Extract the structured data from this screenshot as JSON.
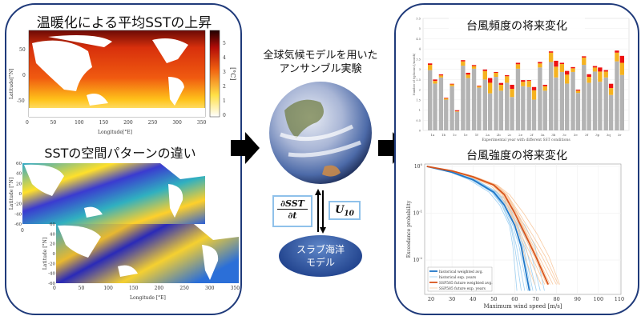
{
  "left_panel": {
    "title1": "温暖化による平均SSTの上昇",
    "title2": "SSTの空間パターンの違い",
    "map1": {
      "ylabel": "Latitude[°N]",
      "xlabel": "Longitude[°E]",
      "yticks": [
        "50",
        "0",
        "-50"
      ],
      "xticks": [
        "0",
        "50",
        "100",
        "150",
        "200",
        "250",
        "300",
        "350"
      ],
      "colorbar_ticks": [
        "5",
        "4",
        "3",
        "2",
        "1",
        "0"
      ],
      "colorbar_unit": "[°C]"
    },
    "map2": {
      "ylabel": "Latitude [°N]",
      "yticks": [
        "60",
        "40",
        "20",
        "0",
        "-20",
        "-40",
        "-60"
      ],
      "xticks": [
        "0"
      ]
    },
    "map3": {
      "ylabel": "Latitude [°N]",
      "xlabel": "Longitude [°E]",
      "yticks": [
        "60",
        "40",
        "20",
        "0",
        "-20",
        "-40",
        "-60"
      ],
      "xticks": [
        "0",
        "50",
        "100",
        "150",
        "200",
        "250",
        "300",
        "350"
      ]
    }
  },
  "center": {
    "title_line1": "全球気候モデルを用いた",
    "title_line2": "アンサンブル実験",
    "flux_box_numerator": "∂SST",
    "flux_box_denominator": "∂t",
    "wind_box": "U",
    "wind_box_sub": "10",
    "slab_line1": "スラブ海洋",
    "slab_line2": "モデル"
  },
  "right_panel": {
    "title1": "台風頻度の将来変化",
    "title2": "台風強度の将来変化"
  },
  "colors": {
    "border": "#1f3a7a",
    "gray": "#b3b3b3",
    "orange": "#f5b21f",
    "red": "#ee1111",
    "hist": "#1f77c8",
    "hist_light": "#9fd0f2",
    "future": "#d9541a",
    "future_light": "#f8c9a0"
  },
  "chart_data": [
    {
      "type": "bar",
      "stacked": true,
      "xlabel": "Experimental year with different SST conditions",
      "ylabel": "Number of typhoons [/month]",
      "ylim": [
        0,
        5.5
      ],
      "yticks": [
        "0",
        "0.5",
        "1",
        "1.5",
        "2",
        "2.5",
        "3",
        "3.5",
        "4",
        "4.5",
        "5",
        "5.5"
      ],
      "categories": [
        "1a",
        "1b",
        "1c",
        "1e",
        "1f",
        "2a",
        "2b",
        "2c",
        "2e",
        "2f",
        "3a",
        "3b",
        "3c",
        "3e",
        "3f",
        "3p",
        "3q",
        "3r"
      ],
      "bars_per_category": 2,
      "segment_colors": [
        "gray",
        "orange",
        "red"
      ],
      "cumulative_tops": [
        [
          [
            2.96,
            3.22,
            3.29
          ],
          [
            2.3,
            2.43,
            2.5
          ]
        ],
        [
          [
            2.6,
            2.7,
            2.75
          ],
          [
            1.51,
            1.57,
            1.6
          ]
        ],
        [
          [
            2.17,
            2.26,
            2.29
          ],
          [
            0.92,
            0.95,
            0.99
          ]
        ],
        [
          [
            3.18,
            3.39,
            3.45
          ],
          [
            2.57,
            2.74,
            2.83
          ]
        ],
        [
          [
            3.03,
            3.16,
            3.21
          ],
          [
            2.1,
            2.17,
            2.2
          ]
        ],
        [
          [
            2.5,
            2.92,
            2.99
          ],
          [
            1.82,
            2.34,
            2.57
          ]
        ],
        [
          [
            2.63,
            2.83,
            2.87
          ],
          [
            1.95,
            2.24,
            2.33
          ]
        ],
        [
          [
            2.34,
            2.66,
            2.71
          ],
          [
            1.64,
            2.04,
            2.24
          ]
        ],
        [
          [
            3.03,
            3.25,
            3.32
          ],
          [
            2.17,
            2.39,
            2.47
          ]
        ],
        [
          [
            2.13,
            2.43,
            2.47
          ],
          [
            1.51,
            1.97,
            2.13
          ]
        ],
        [
          [
            3.09,
            3.29,
            3.36
          ],
          [
            1.95,
            2.17,
            2.24
          ]
        ],
        [
          [
            3.36,
            3.82,
            3.88
          ],
          [
            2.6,
            3.13,
            3.42
          ]
        ],
        [
          [
            2.87,
            3.26,
            3.32
          ],
          [
            2.3,
            2.74,
            2.92
          ]
        ],
        [
          [
            2.87,
            3.05,
            3.11
          ],
          [
            1.84,
            1.95,
            2.0
          ]
        ],
        [
          [
            3.22,
            3.58,
            3.64
          ],
          [
            2.34,
            2.63,
            2.76
          ]
        ],
        [
          [
            2.89,
            3.09,
            3.16
          ],
          [
            2.39,
            2.89,
            3.09
          ]
        ],
        [
          [
            2.6,
            2.89,
            2.96
          ],
          [
            1.74,
            2.08,
            2.29
          ]
        ],
        [
          [
            3.39,
            3.82,
            3.92
          ],
          [
            2.72,
            3.32,
            3.66
          ]
        ]
      ]
    },
    {
      "type": "line",
      "xlabel": "Maximum wind speed [m/s]",
      "ylabel": "Exceedance probability",
      "xlim": [
        17,
        110
      ],
      "ylim": [
        0.002,
        1
      ],
      "yscale": "log",
      "grid": true,
      "legend_placement": "bottom-left",
      "xticks": [
        "20",
        "30",
        "40",
        "50",
        "60",
        "70",
        "80",
        "90",
        "100",
        "110"
      ],
      "yticks": [
        "10^0",
        "10^-1",
        "10^-2"
      ],
      "series": [
        {
          "name": "historical weighted avg.",
          "color": "hist",
          "x": [
            18,
            30,
            40,
            50,
            55,
            60,
            63,
            67
          ],
          "y": [
            1,
            0.75,
            0.52,
            0.28,
            0.15,
            0.055,
            0.02,
            0.0022
          ]
        },
        {
          "name": "historical exp. years",
          "color": "hist_light",
          "x": [],
          "y": []
        },
        {
          "name": "SSP585 future weighted avg.",
          "color": "future",
          "x": [
            18,
            30,
            40,
            50,
            55,
            60,
            65,
            70,
            76
          ],
          "y": [
            1,
            0.8,
            0.6,
            0.4,
            0.25,
            0.1,
            0.035,
            0.012,
            0.003
          ]
        },
        {
          "name": "SSP585 future exp. years",
          "color": "future_light",
          "x": [],
          "y": []
        }
      ]
    }
  ]
}
